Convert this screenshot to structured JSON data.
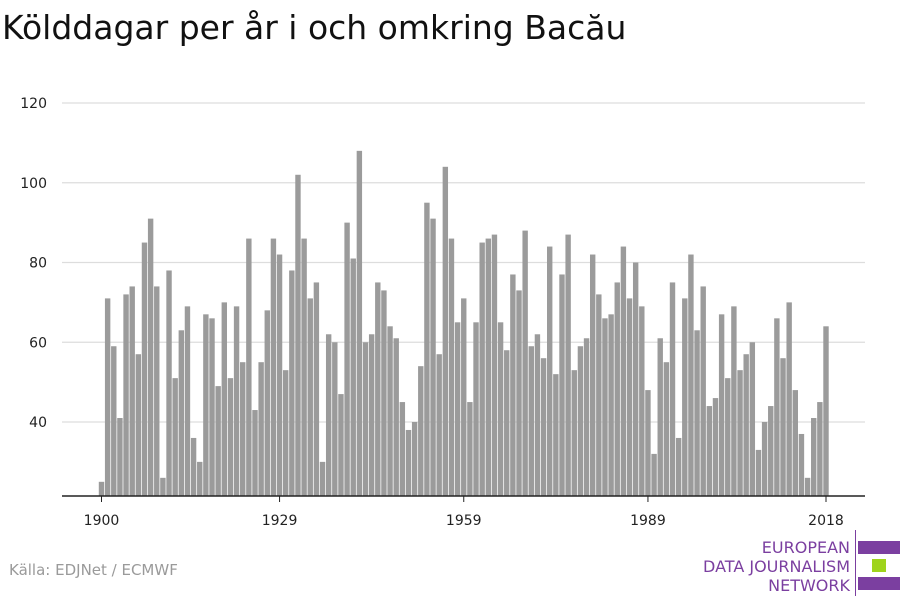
{
  "title": "Kölddagar per år i och omkring Bacău",
  "source": "Källa: EDJNet / ECMWF",
  "logo": {
    "line1": "EUROPEAN",
    "line2": "DATA JOURNALISM",
    "line3": "NETWORK"
  },
  "colors": {
    "bar": "#9b9b9b",
    "grid": "#dddddd",
    "axis": "#222222",
    "logo_purple": "#7b3fa0",
    "logo_green": "#9fd41c"
  },
  "chart_data": {
    "type": "bar",
    "title": "Kölddagar per år i och omkring Bacău",
    "xlabel": "",
    "ylabel": "",
    "x_ticks": [
      1900,
      1929,
      1959,
      1989,
      2018
    ],
    "y_ticks": [
      40,
      60,
      80,
      100,
      120
    ],
    "ylim": [
      22,
      122
    ],
    "grid": true,
    "start_year": 1900,
    "end_year": 2018,
    "values": [
      25,
      71,
      59,
      41,
      72,
      74,
      57,
      85,
      91,
      74,
      26,
      78,
      51,
      63,
      69,
      36,
      30,
      67,
      66,
      49,
      70,
      51,
      69,
      55,
      86,
      43,
      55,
      68,
      86,
      82,
      53,
      78,
      102,
      86,
      71,
      75,
      30,
      62,
      60,
      47,
      90,
      81,
      108,
      60,
      62,
      75,
      73,
      64,
      61,
      45,
      38,
      40,
      54,
      95,
      91,
      57,
      104,
      86,
      65,
      71,
      45,
      65,
      85,
      86,
      87,
      65,
      58,
      77,
      73,
      88,
      59,
      62,
      56,
      84,
      52,
      77,
      87,
      53,
      59,
      61,
      82,
      72,
      66,
      67,
      75,
      84,
      71,
      80,
      69,
      48,
      32,
      61,
      55,
      75,
      36,
      71,
      82,
      63,
      74,
      44,
      46,
      67,
      51,
      69,
      53,
      57,
      60,
      33,
      40,
      44,
      66,
      56,
      70,
      48,
      37,
      26,
      41,
      45,
      64
    ]
  }
}
